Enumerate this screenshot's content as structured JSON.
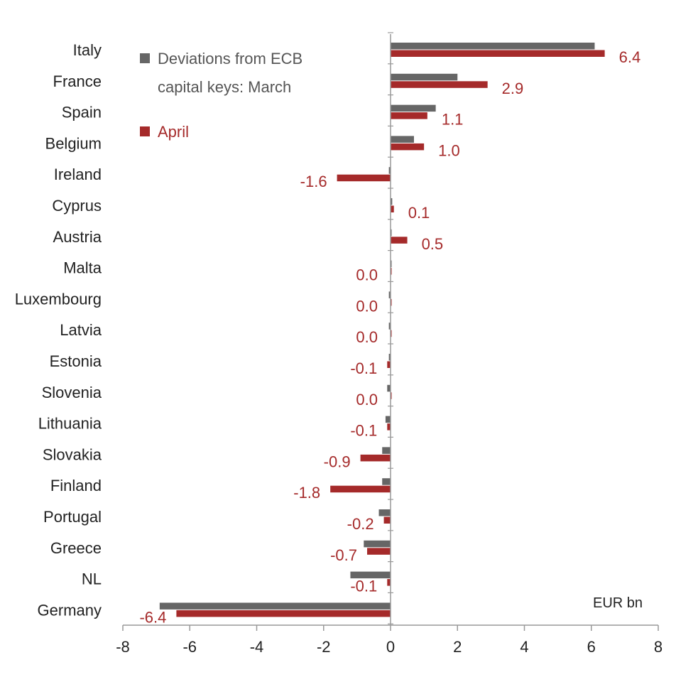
{
  "chart_data": {
    "type": "bar",
    "orientation": "horizontal",
    "categories": [
      "Italy",
      "France",
      "Spain",
      "Belgium",
      "Ireland",
      "Cyprus",
      "Austria",
      "Malta",
      "Luxembourg",
      "Latvia",
      "Estonia",
      "Slovenia",
      "Lithuania",
      "Slovakia",
      "Finland",
      "Portugal",
      "Greece",
      "NL",
      "Germany"
    ],
    "series": [
      {
        "name": "Deviations from ECB capital keys: March",
        "color": "#666666",
        "values": [
          6.1,
          2.0,
          1.35,
          0.7,
          -0.05,
          0.05,
          0.0,
          0.0,
          -0.05,
          -0.05,
          -0.05,
          -0.1,
          -0.15,
          -0.25,
          -0.25,
          -0.35,
          -0.8,
          -1.2,
          -6.9
        ]
      },
      {
        "name": "April",
        "color": "#a52a2a",
        "values": [
          6.4,
          2.9,
          1.1,
          1.0,
          -1.6,
          0.1,
          0.5,
          0.0,
          0.0,
          0.0,
          -0.1,
          0.0,
          -0.1,
          -0.9,
          -1.8,
          -0.2,
          -0.7,
          -0.1,
          -6.4
        ]
      }
    ],
    "data_labels": [
      "6.4",
      "2.9",
      "1.1",
      "1.0",
      "-1.6",
      "0.1",
      "0.5",
      "0.0",
      "0.0",
      "0.0",
      "-0.1",
      "0.0",
      "-0.1",
      "-0.9",
      "-1.8",
      "-0.2",
      "-0.7",
      "-0.1",
      "-6.4"
    ],
    "x_ticks": [
      "-8",
      "-6",
      "-4",
      "-2",
      "0",
      "2",
      "4",
      "6",
      "8"
    ],
    "xlim": [
      -8,
      8
    ],
    "unit": "EUR bn",
    "legend": {
      "march_lines": [
        "Deviations from ECB",
        "capital keys: March"
      ],
      "april": "April",
      "placement": "top-left"
    },
    "grid": false
  }
}
